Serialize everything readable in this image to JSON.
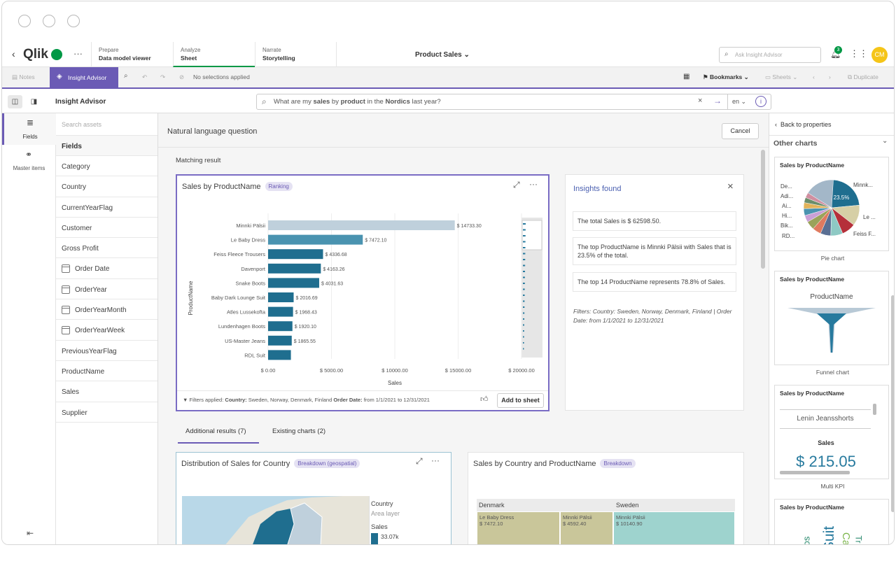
{
  "app": {
    "logo": "Qlik",
    "more": "···",
    "avatar": "CM",
    "notif_count": "3",
    "search_placeholder": "Ask Insight Advisor",
    "sheet_title": "Product Sales"
  },
  "tabs": [
    {
      "top": "Prepare",
      "bottom": "Data model viewer"
    },
    {
      "top": "Analyze",
      "bottom": "Sheet"
    },
    {
      "top": "Narrate",
      "bottom": "Storytelling"
    }
  ],
  "toolbar": {
    "notes": "Notes",
    "insight_advisor": "Insight Advisor",
    "selections": "No selections applied",
    "bookmarks": "Bookmarks",
    "sheets": "Sheets",
    "duplicate": "Duplicate"
  },
  "ia": {
    "title": "Insight Advisor",
    "query": "What are my sales by product in the Nordics last year?",
    "query_plain1": "What are my ",
    "query_b1": "sales",
    "query_plain2": " by ",
    "query_b2": "product",
    "query_plain3": " in the ",
    "query_b3": "Nordics",
    "query_plain4": " last year?",
    "lang": "en"
  },
  "rail": {
    "fields": "Fields",
    "master": "Master items"
  },
  "assets": {
    "search_placeholder": "Search assets",
    "header": "Fields",
    "items": [
      {
        "label": "Category",
        "cal": false
      },
      {
        "label": "Country",
        "cal": false
      },
      {
        "label": "CurrentYearFlag",
        "cal": false
      },
      {
        "label": "Customer",
        "cal": false
      },
      {
        "label": "Gross Profit",
        "cal": false
      },
      {
        "label": "Order Date",
        "cal": true
      },
      {
        "label": "OrderYear",
        "cal": true
      },
      {
        "label": "OrderYearMonth",
        "cal": true
      },
      {
        "label": "OrderYearWeek",
        "cal": true
      },
      {
        "label": "PreviousYearFlag",
        "cal": false
      },
      {
        "label": "ProductName",
        "cal": false
      },
      {
        "label": "Sales",
        "cal": false
      },
      {
        "label": "Supplier",
        "cal": false
      }
    ]
  },
  "main": {
    "nlq": "Natural language question",
    "cancel": "Cancel",
    "matching": "Matching result",
    "chart_title": "Sales by ProductName",
    "chart_badge": "Ranking",
    "filters_label": "Filters applied:",
    "filters_country": "Country:",
    "filters_country_val": "Sweden, Norway, Denmark, Finland",
    "filters_date": "Order Date:",
    "filters_date_val": "from 1/1/2021 to 12/31/2021",
    "add_to_sheet": "Add to sheet",
    "tab_additional": "Additional results (7)",
    "tab_existing": "Existing charts (2)",
    "card2_title": "Distribution of Sales for Country",
    "card2_badge": "Breakdown (geospatial)",
    "map_legend": {
      "country": "Country",
      "layer": "Area layer",
      "sales": "Sales",
      "value": "33.07k"
    },
    "card3_title": "Sales by Country and ProductName",
    "card3_badge": "Breakdown",
    "treemap": {
      "col1": "Denmark",
      "col2": "Sweden",
      "cells": [
        {
          "name": "Le Baby Dress",
          "value": "$ 7472.10"
        },
        {
          "name": "Minnki Pälsii",
          "value": "$ 4592.40"
        },
        {
          "name": "Minnki Pälsii",
          "value": "$ 10140.90"
        }
      ]
    }
  },
  "insights": {
    "title": "Insights found",
    "items": [
      "The total Sales is $ 62598.50.",
      "The top ProductName is Minnki Pälsii with Sales that is 23.5% of the total.",
      "The top 14 ProductName represents 78.8% of Sales."
    ],
    "filters": "Filters: Country: Sweden, Norway, Denmark, Finland | Order Date: from 1/1/2021 to 12/31/2021"
  },
  "right": {
    "back": "Back to properties",
    "other": "Other charts",
    "cards": [
      {
        "title": "Sales by ProductName",
        "caption": "Pie chart"
      },
      {
        "title": "Sales by ProductName",
        "caption": "Funnel chart"
      },
      {
        "title": "Sales by ProductName",
        "caption": "Multi KPI"
      },
      {
        "title": "Sales by ProductName",
        "caption": ""
      }
    ],
    "pie_labels": [
      "De...",
      "Adi...",
      "Ai...",
      "Hi...",
      "Bik...",
      "RD...",
      "Minnk...",
      "Le ...",
      "Feiss F..."
    ],
    "pie_pct": "23.5%",
    "funnel_label": "ProductName",
    "kpi_item": "Lenin Jeansshorts",
    "kpi_measure": "Sales",
    "kpi_value": "$ 215.05",
    "word_cloud": [
      "os",
      "Suit",
      "Ca",
      "Tr"
    ]
  },
  "chart_data": {
    "type": "bar",
    "title": "Sales by ProductName",
    "xlabel": "Sales",
    "ylabel": "ProductName",
    "xlim": [
      0,
      20000
    ],
    "x_ticks": [
      "$ 0.00",
      "$ 5000.00",
      "$ 10000.00",
      "$ 15000.00",
      "$ 20000.00"
    ],
    "categories": [
      "Minnki Pälsii",
      "Le Baby Dress",
      "Feiss Fleece Trousers",
      "Davenport",
      "Snake Boots",
      "Baby Dark Lounge Suit",
      "Atles Lussekofta",
      "Lundenhagen Boots",
      "US-Master Jeans",
      "RDL Suit"
    ],
    "values": [
      14733.3,
      7472.1,
      4336.68,
      4163.26,
      4031.63,
      2016.69,
      1968.43,
      1920.1,
      1865.55,
      1800
    ],
    "value_labels": [
      "$ 14733.30",
      "$ 7472.10",
      "$ 4336.68",
      "$ 4163.26",
      "$ 4031.63",
      "$ 2016.69",
      "$ 1968.43",
      "$ 1920.10",
      "$ 1865.55",
      ""
    ],
    "colors": {
      "top": "#bfd0dc",
      "mid": "#4a93b0",
      "low": "#1f6e8f"
    }
  }
}
